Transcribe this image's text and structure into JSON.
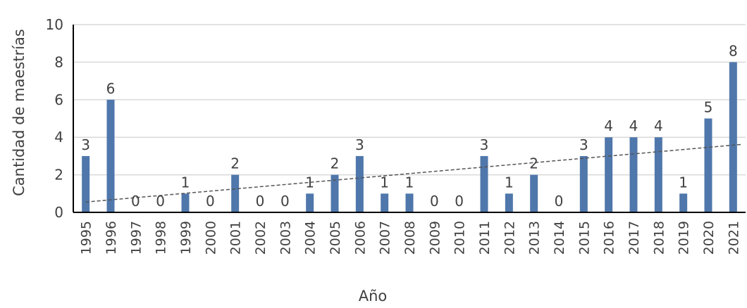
{
  "chart_data": {
    "type": "bar",
    "title": "",
    "xlabel": "Año",
    "ylabel": "Cantidad de maestrías",
    "ylim": [
      0,
      10
    ],
    "yticks": [
      "0",
      "2",
      "4",
      "6",
      "8",
      "10"
    ],
    "grid": true,
    "categories": [
      "1995",
      "1996",
      "1997",
      "1998",
      "1999",
      "2000",
      "2001",
      "2002",
      "2003",
      "2004",
      "2005",
      "2006",
      "2007",
      "2008",
      "2009",
      "2010",
      "2011",
      "2012",
      "2013",
      "2014",
      "2015",
      "2016",
      "2017",
      "2018",
      "2019",
      "2020",
      "2021"
    ],
    "values": [
      3,
      6,
      0,
      0,
      1,
      0,
      2,
      0,
      0,
      1,
      2,
      3,
      1,
      1,
      0,
      0,
      3,
      1,
      2,
      0,
      3,
      4,
      4,
      4,
      1,
      5,
      8
    ],
    "trendline": {
      "style": "dashed",
      "from": [
        1995,
        0.55
      ],
      "to": [
        2021,
        3.6
      ]
    },
    "colors": {
      "bar": "#4f77ab",
      "grid": "#d9d9d9",
      "axis": "#000000",
      "text": "#404040",
      "trend": "#555555"
    }
  }
}
